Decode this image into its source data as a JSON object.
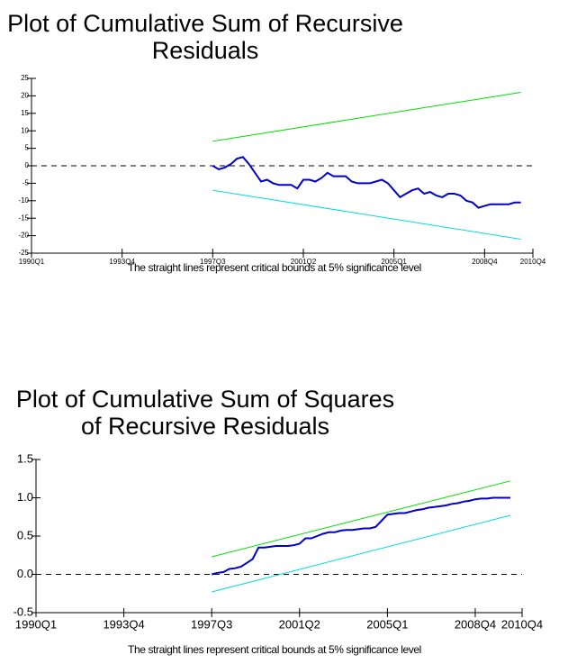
{
  "chart_data": [
    {
      "type": "line",
      "title": [
        "Plot of Cumulative Sum of Recursive",
        "Residuals"
      ],
      "caption": "The straight lines represent critical bounds at 5% significance level",
      "x": [
        "1997Q3",
        "1997Q4",
        "1998Q1",
        "1998Q2",
        "1998Q3",
        "1998Q4",
        "1999Q1",
        "1999Q2",
        "1999Q3",
        "1999Q4",
        "2000Q1",
        "2000Q2",
        "2000Q3",
        "2000Q4",
        "2001Q1",
        "2001Q2",
        "2001Q3",
        "2001Q4",
        "2002Q1",
        "2002Q2",
        "2002Q3",
        "2002Q4",
        "2003Q1",
        "2003Q2",
        "2003Q3",
        "2003Q4",
        "2004Q1",
        "2004Q2",
        "2004Q3",
        "2004Q4",
        "2005Q1",
        "2005Q2",
        "2005Q3",
        "2005Q4",
        "2006Q1",
        "2006Q2",
        "2006Q3",
        "2006Q4",
        "2007Q1",
        "2007Q2",
        "2007Q3",
        "2007Q4",
        "2008Q1",
        "2008Q2",
        "2008Q3",
        "2008Q4",
        "2009Q1",
        "2009Q2",
        "2009Q3",
        "2009Q4",
        "2010Q1",
        "2010Q2"
      ],
      "series": [
        {
          "color": "#0000cc",
          "values": [
            0,
            -1,
            -0.5,
            0.5,
            2,
            2.5,
            0.5,
            -2,
            -4.5,
            -4,
            -5,
            -5.5,
            -5.5,
            -5.5,
            -6.5,
            -4,
            -4,
            -4.5,
            -3.5,
            -2,
            -3,
            -3,
            -3,
            -4.5,
            -5,
            -5,
            -5,
            -4.5,
            -4,
            -5,
            -7,
            -9,
            -8,
            -7,
            -6.5,
            -8,
            -7.5,
            -8.5,
            -9,
            -8,
            -8,
            -8.5,
            -10,
            -10.5,
            -12,
            -11.5,
            -11,
            -11,
            -11,
            -11,
            -10.5,
            -10.5
          ]
        },
        {
          "color": "#00e000",
          "x": [
            "1997Q3",
            "2010Q2"
          ],
          "values": [
            7,
            21
          ]
        },
        {
          "color": "#00dcdc",
          "x": [
            "1997Q3",
            "2010Q2"
          ],
          "values": [
            -7,
            -21
          ]
        }
      ],
      "xlim": [
        1990,
        2010.75
      ],
      "xticks": [
        {
          "value": 1990,
          "label": "1990Q1"
        },
        {
          "value": 1993.75,
          "label": "1993Q4"
        },
        {
          "value": 1997.5,
          "label": "1997Q3"
        },
        {
          "value": 2001.25,
          "label": "2001Q2"
        },
        {
          "value": 2005,
          "label": "2005Q1"
        },
        {
          "value": 2008.75,
          "label": "2008Q4"
        },
        {
          "value": 2010.75,
          "label": "2010Q4"
        }
      ],
      "ylim": [
        -25,
        25
      ],
      "yticks": [
        -25,
        -20,
        -15,
        -10,
        -5,
        0,
        5,
        10,
        15,
        20,
        25
      ],
      "ref_line": 0
    },
    {
      "type": "line",
      "title": [
        "Plot of Cumulative Sum of Squares",
        "of Recursive Residuals"
      ],
      "caption": "The straight lines represent critical bounds at 5% significance level",
      "x": [
        "1997Q3",
        "1997Q4",
        "1998Q1",
        "1998Q2",
        "1998Q3",
        "1998Q4",
        "1999Q1",
        "1999Q2",
        "1999Q3",
        "1999Q4",
        "2000Q1",
        "2000Q2",
        "2000Q3",
        "2000Q4",
        "2001Q1",
        "2001Q2",
        "2001Q3",
        "2001Q4",
        "2002Q1",
        "2002Q2",
        "2002Q3",
        "2002Q4",
        "2003Q1",
        "2003Q2",
        "2003Q3",
        "2003Q4",
        "2004Q1",
        "2004Q2",
        "2004Q3",
        "2004Q4",
        "2005Q1",
        "2005Q2",
        "2005Q3",
        "2005Q4",
        "2006Q1",
        "2006Q2",
        "2006Q3",
        "2006Q4",
        "2007Q1",
        "2007Q2",
        "2007Q3",
        "2007Q4",
        "2008Q1",
        "2008Q2",
        "2008Q3",
        "2008Q4",
        "2009Q1",
        "2009Q2",
        "2009Q3",
        "2009Q4",
        "2010Q1",
        "2010Q2"
      ],
      "series": [
        {
          "color": "#0000cc",
          "values": [
            0,
            0.02,
            0.03,
            0.07,
            0.08,
            0.1,
            0.15,
            0.2,
            0.35,
            0.35,
            0.36,
            0.37,
            0.37,
            0.37,
            0.38,
            0.4,
            0.47,
            0.47,
            0.5,
            0.53,
            0.55,
            0.55,
            0.57,
            0.58,
            0.58,
            0.59,
            0.6,
            0.6,
            0.62,
            0.7,
            0.78,
            0.79,
            0.8,
            0.8,
            0.82,
            0.84,
            0.85,
            0.87,
            0.88,
            0.89,
            0.9,
            0.92,
            0.93,
            0.95,
            0.96,
            0.98,
            0.99,
            0.99,
            1,
            1,
            1,
            1
          ]
        },
        {
          "color": "#00e000",
          "x": [
            "1997Q3",
            "2010Q2"
          ],
          "values": [
            0.23,
            1.22
          ]
        },
        {
          "color": "#00dcdc",
          "x": [
            "1997Q3",
            "2010Q2"
          ],
          "values": [
            -0.23,
            0.77
          ]
        }
      ],
      "xlim": [
        1990,
        2010.75
      ],
      "xticks": [
        {
          "value": 1990,
          "label": "1990Q1"
        },
        {
          "value": 1993.75,
          "label": "1993Q4"
        },
        {
          "value": 1997.5,
          "label": "1997Q3"
        },
        {
          "value": 2001.25,
          "label": "2001Q2"
        },
        {
          "value": 2005,
          "label": "2005Q1"
        },
        {
          "value": 2008.75,
          "label": "2008Q4"
        },
        {
          "value": 2010.75,
          "label": "2010Q4"
        }
      ],
      "ylim": [
        -0.5,
        1.5
      ],
      "yticks": [
        -0.5,
        {
          "value": 0,
          "label": "0.0"
        },
        0.5,
        {
          "value": 1,
          "label": "1.0"
        },
        1.5
      ],
      "ref_line": 0
    }
  ]
}
